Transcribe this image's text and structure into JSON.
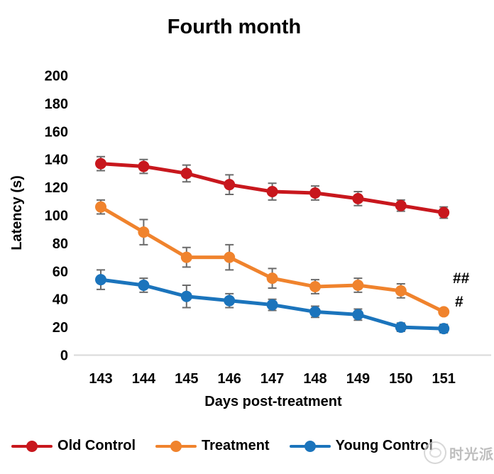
{
  "chart_data": {
    "type": "line",
    "title": "Fourth month",
    "xlabel": "Days post-treatment",
    "ylabel": "Latency (s)",
    "categories": [
      143,
      144,
      145,
      146,
      147,
      148,
      149,
      150,
      151
    ],
    "y_ticks": [
      0,
      20,
      40,
      60,
      80,
      100,
      120,
      140,
      160,
      180,
      200
    ],
    "ylim": [
      0,
      200
    ],
    "grid": false,
    "legend_position": "bottom",
    "error_bars": true,
    "series": [
      {
        "name": "Old Control",
        "color": "#C8171D",
        "values": [
          137,
          135,
          130,
          122,
          117,
          116,
          112,
          107,
          102
        ],
        "errors": [
          5,
          5,
          6,
          7,
          6,
          5,
          5,
          4,
          4
        ]
      },
      {
        "name": "Treatment",
        "color": "#F0832D",
        "values": [
          106,
          88,
          70,
          70,
          55,
          49,
          50,
          46,
          31
        ],
        "errors": [
          5,
          9,
          7,
          9,
          7,
          5,
          5,
          5,
          2
        ]
      },
      {
        "name": "Young Control",
        "color": "#1B74BC",
        "values": [
          54,
          50,
          42,
          39,
          36,
          31,
          29,
          20,
          19
        ],
        "errors": [
          7,
          5,
          8,
          5,
          4,
          4,
          4,
          3,
          3
        ]
      }
    ],
    "annotations": [
      {
        "text": "##"
      },
      {
        "text": "#"
      }
    ]
  },
  "watermark": {
    "text": "时光派"
  },
  "colors": {
    "error_bar": "#6b6b6b",
    "axis_line": "#D9D9D9",
    "text": "#000000"
  }
}
